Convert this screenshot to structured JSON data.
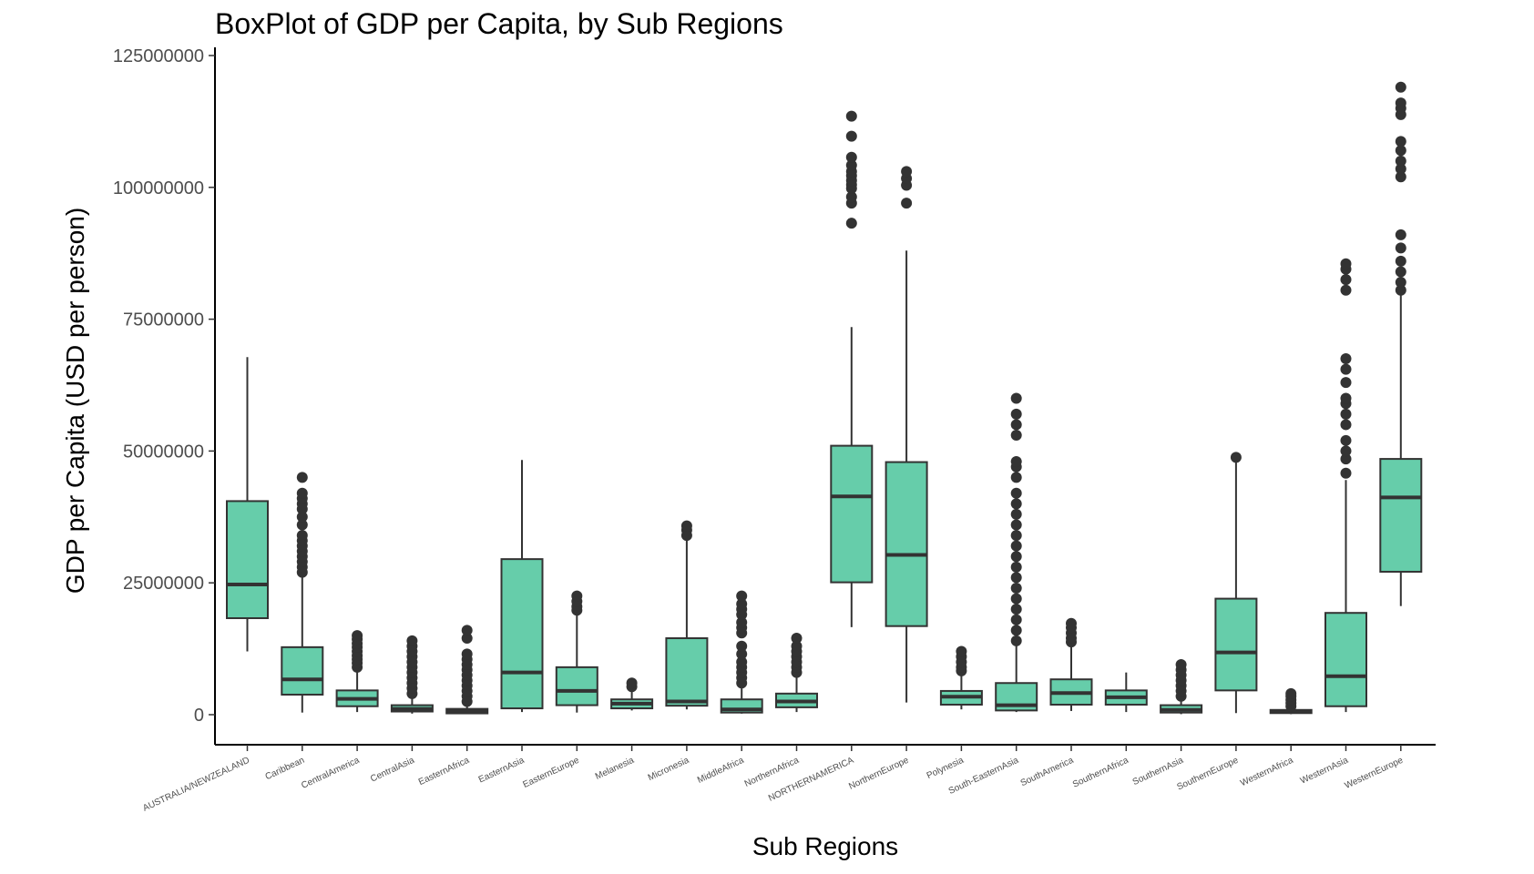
{
  "chart_data": {
    "type": "boxplot",
    "title": "BoxPlot of GDP per Capita, by Sub Regions",
    "xlabel": "Sub Regions",
    "ylabel": "GDP per Capita (USD per person)",
    "ylim": [
      -5500000,
      125000000
    ],
    "yticks": [
      0,
      25000000,
      50000000,
      75000000,
      100000000,
      125000000
    ],
    "ytick_labels": [
      "0",
      "25000000",
      "50000000",
      "75000000",
      "100000000",
      "125000000"
    ],
    "grid": false,
    "legend": "none",
    "colors": {
      "box_fill": "#66CDAA",
      "stroke": "#333333"
    },
    "categories": [
      "AUSTRALIA/NEWZEALAND",
      "Caribbean",
      "CentralAmerica",
      "CentralAsia",
      "EasternAfrica",
      "EasternAsia",
      "EasternEurope",
      "Melanesia",
      "Micronesia",
      "MiddleAfrica",
      "NorthernAfrica",
      "NORTHERNAMERICA",
      "NorthernEurope",
      "Polynesia",
      "South-EasternAsia",
      "SouthAmerica",
      "SouthernAfrica",
      "SouthernAsia",
      "SouthernEurope",
      "WesternAfrica",
      "WesternAsia",
      "WesternEurope"
    ],
    "boxes": [
      {
        "min": 12000000,
        "q1": 18300000,
        "median": 24700000,
        "q3": 40500000,
        "max": 67800000,
        "outliers": []
      },
      {
        "min": 400000,
        "q1": 3800000,
        "median": 6700000,
        "q3": 12800000,
        "max": 26500000,
        "outliers": [
          27000000,
          28000000,
          29000000,
          30000000,
          31000000,
          32000000,
          33000000,
          34000000,
          36000000,
          37500000,
          39000000,
          40000000,
          41000000,
          42000000,
          45000000
        ]
      },
      {
        "min": 500000,
        "q1": 1600000,
        "median": 3000000,
        "q3": 4600000,
        "max": 8500000,
        "outliers": [
          9000000,
          9800000,
          10500000,
          11200000,
          12000000,
          12800000,
          13500000,
          14300000,
          15000000
        ]
      },
      {
        "min": 200000,
        "q1": 600000,
        "median": 1100000,
        "q3": 1800000,
        "max": 3500000,
        "outliers": [
          4000000,
          5000000,
          6000000,
          7000000,
          8000000,
          9000000,
          10000000,
          11000000,
          12000000,
          13000000,
          14000000
        ]
      },
      {
        "min": 100000,
        "q1": 250000,
        "median": 600000,
        "q3": 1100000,
        "max": 2000000,
        "outliers": [
          2500000,
          3500000,
          4500000,
          5500000,
          6500000,
          7500000,
          8500000,
          9500000,
          10500000,
          11500000,
          14500000,
          16000000
        ]
      },
      {
        "min": 500000,
        "q1": 1200000,
        "median": 8000000,
        "q3": 29500000,
        "max": 48300000,
        "outliers": []
      },
      {
        "min": 400000,
        "q1": 1800000,
        "median": 4500000,
        "q3": 9000000,
        "max": 19000000,
        "outliers": [
          19800000,
          20500000,
          21500000,
          22500000
        ]
      },
      {
        "min": 800000,
        "q1": 1200000,
        "median": 2100000,
        "q3": 2900000,
        "max": 4500000,
        "outliers": [
          5300000,
          6000000
        ]
      },
      {
        "min": 1000000,
        "q1": 1700000,
        "median": 2500000,
        "q3": 14500000,
        "max": 33000000,
        "outliers": [
          34000000,
          35000000,
          35800000
        ]
      },
      {
        "min": 200000,
        "q1": 400000,
        "median": 1000000,
        "q3": 2900000,
        "max": 5000000,
        "outliers": [
          6000000,
          7000000,
          8000000,
          9000000,
          10000000,
          11500000,
          13000000,
          15500000,
          16500000,
          17500000,
          19000000,
          20000000,
          21000000,
          22500000
        ]
      },
      {
        "min": 500000,
        "q1": 1400000,
        "median": 2500000,
        "q3": 4000000,
        "max": 7500000,
        "outliers": [
          8000000,
          9000000,
          10000000,
          11000000,
          12000000,
          13000000,
          14500000
        ]
      },
      {
        "min": 16600000,
        "q1": 25100000,
        "median": 41400000,
        "q3": 51000000,
        "max": 73500000,
        "outliers": [
          93200000,
          97000000,
          98200000,
          99800000,
          100500000,
          101300000,
          102200000,
          103000000,
          104200000,
          105700000,
          109700000,
          113500000
        ]
      },
      {
        "min": 2300000,
        "q1": 16800000,
        "median": 30300000,
        "q3": 47900000,
        "max": 88000000,
        "outliers": [
          97000000,
          100400000,
          101700000,
          103000000
        ]
      },
      {
        "min": 1000000,
        "q1": 1900000,
        "median": 3400000,
        "q3": 4500000,
        "max": 7500000,
        "outliers": [
          8300000,
          9000000,
          10000000,
          11000000,
          12000000
        ]
      },
      {
        "min": 500000,
        "q1": 800000,
        "median": 1800000,
        "q3": 6000000,
        "max": 13500000,
        "outliers": [
          14000000,
          16000000,
          18000000,
          20000000,
          22000000,
          24000000,
          26000000,
          28000000,
          30000000,
          32000000,
          34000000,
          36000000,
          38000000,
          40000000,
          42000000,
          45000000,
          47000000,
          48000000,
          53000000,
          55000000,
          57000000,
          60000000
        ]
      },
      {
        "min": 700000,
        "q1": 1900000,
        "median": 4100000,
        "q3": 6700000,
        "max": 13000000,
        "outliers": [
          13800000,
          14500000,
          15500000,
          16500000,
          17300000
        ]
      },
      {
        "min": 500000,
        "q1": 1900000,
        "median": 3300000,
        "q3": 4600000,
        "max": 8000000,
        "outliers": []
      },
      {
        "min": 100000,
        "q1": 400000,
        "median": 900000,
        "q3": 1800000,
        "max": 3000000,
        "outliers": [
          3500000,
          4500000,
          5500000,
          6500000,
          7500000,
          8500000,
          9500000
        ]
      },
      {
        "min": 300000,
        "q1": 4600000,
        "median": 11800000,
        "q3": 22000000,
        "max": 48000000,
        "outliers": [
          48800000
        ]
      },
      {
        "min": 100000,
        "q1": 300000,
        "median": 600000,
        "q3": 900000,
        "max": 1300000,
        "outliers": [
          1600000,
          2200000,
          2800000,
          3500000,
          4000000
        ]
      },
      {
        "min": 500000,
        "q1": 1600000,
        "median": 7300000,
        "q3": 19300000,
        "max": 44500000,
        "outliers": [
          45800000,
          48500000,
          50000000,
          52000000,
          55000000,
          57000000,
          59000000,
          60000000,
          63000000,
          65500000,
          67500000,
          80500000,
          82500000,
          84500000,
          85500000
        ]
      },
      {
        "min": 20600000,
        "q1": 27100000,
        "median": 41200000,
        "q3": 48500000,
        "max": 80000000,
        "outliers": [
          80500000,
          82000000,
          84000000,
          86000000,
          88500000,
          91000000,
          102000000,
          103500000,
          105000000,
          107000000,
          108700000,
          113800000,
          115000000,
          116000000,
          119000000
        ]
      }
    ]
  }
}
